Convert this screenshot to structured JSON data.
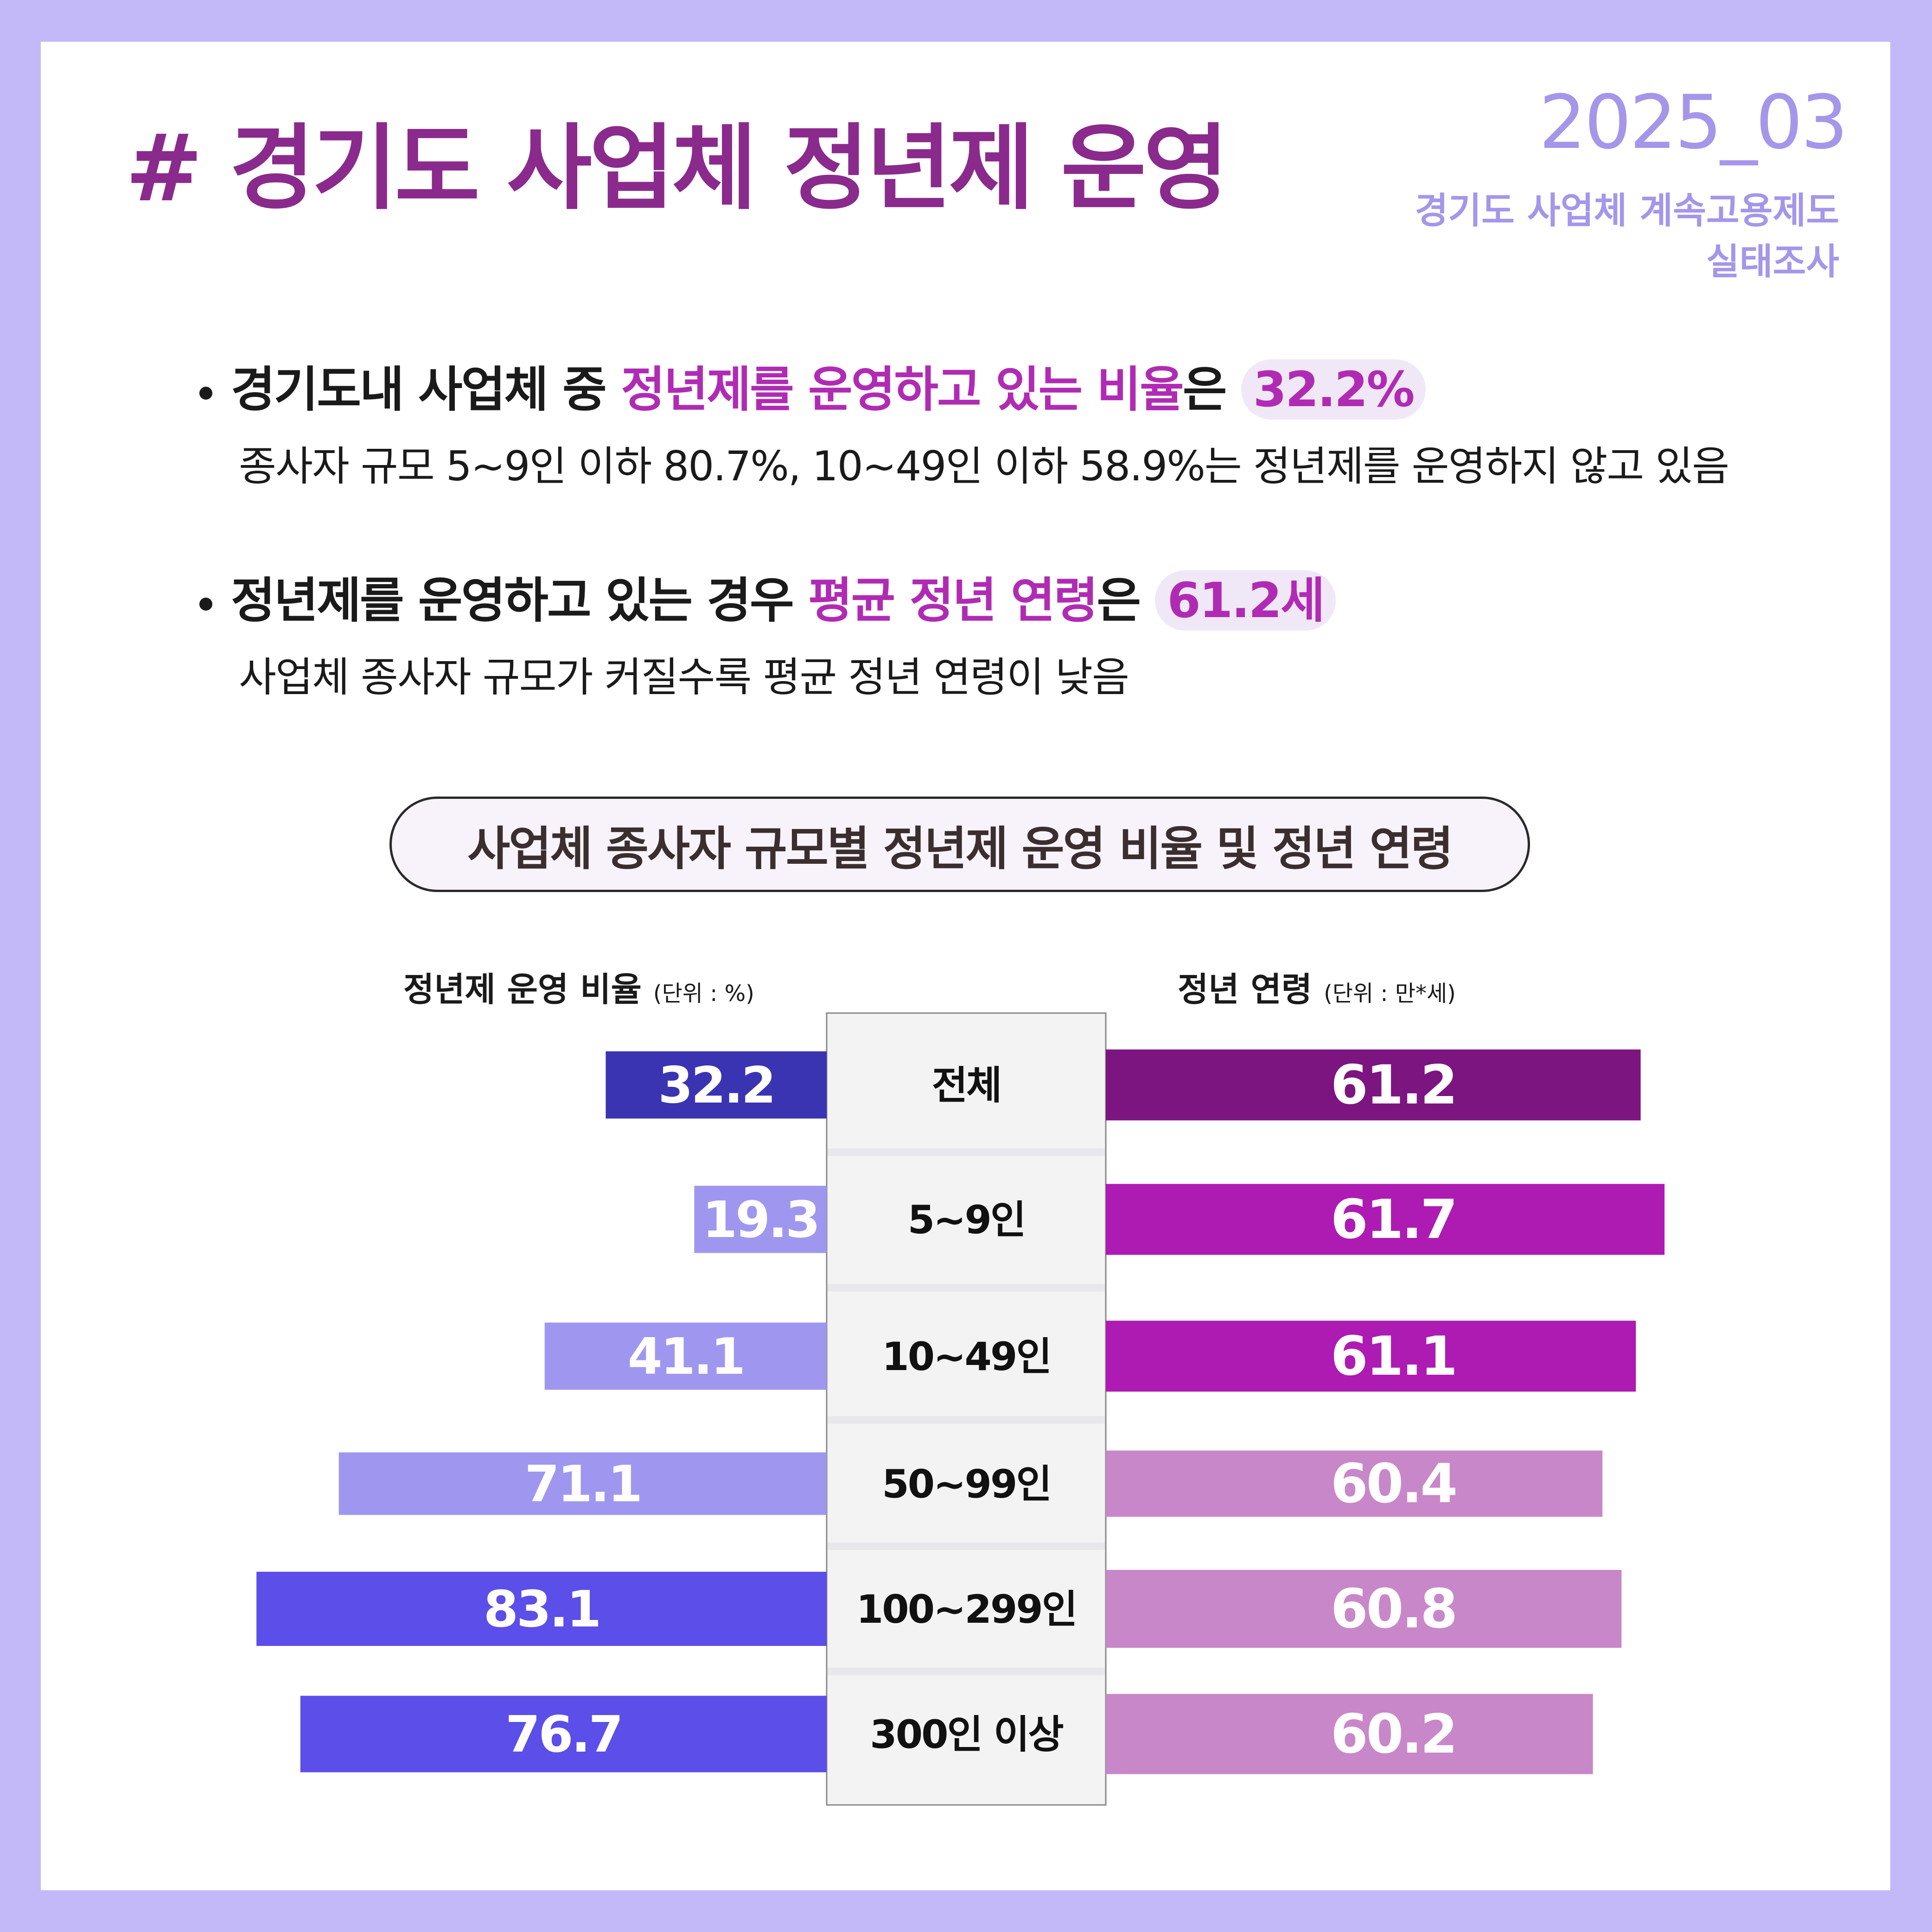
{
  "header": {
    "title": "# 경기도 사업체 정년제 운영",
    "date": "2025_03",
    "source_line1": "경기도 사업체 계속고용제도",
    "source_line2": "실태조사"
  },
  "bullets": [
    {
      "pre": "경기도내 사업체 중 ",
      "highlight": "정년제를 운영하고 있는 비율",
      "post": "은 ",
      "value": "32.2%",
      "sub": "종사자 규모 5~9인 이하 80.7%, 10~49인 이하 58.9%는 정년제를 운영하지 않고 있음"
    },
    {
      "pre": "정년제를 운영하고 있는 경우 ",
      "highlight": "평균 정년 연령",
      "post": "은 ",
      "value": "61.2세",
      "sub": "사업체 종사자 규모가 커질수록 평균 정년 연령이 낮음"
    }
  ],
  "chart_title": "사업체 종사자 규모별 정년제 운영 비율 및 정년 연령",
  "left_axis": {
    "label": "정년제 운영 비율",
    "unit": "(단위 : %)"
  },
  "right_axis": {
    "label": "정년 연령",
    "unit": "(단위 : 만*세)"
  },
  "chart_data": {
    "type": "bar",
    "orientation": "horizontal-butterfly",
    "categories": [
      "전체",
      "5~9인",
      "10~49인",
      "50~99인",
      "100~299인",
      "300인 이상"
    ],
    "series": [
      {
        "name": "정년제 운영 비율",
        "values": [
          32.2,
          19.3,
          41.1,
          71.1,
          83.1,
          76.7
        ],
        "colors": [
          "#3a34b3",
          "#9f97ef",
          "#9f97ef",
          "#9f97ef",
          "#5b4ee9",
          "#5b4ee9"
        ]
      },
      {
        "name": "정년 연령",
        "values": [
          61.2,
          61.7,
          61.1,
          60.4,
          60.8,
          60.2
        ],
        "colors": [
          "#7c1580",
          "#ad1bb3",
          "#ad1bb3",
          "#c887c8",
          "#c887c8",
          "#c887c8"
        ]
      }
    ]
  }
}
